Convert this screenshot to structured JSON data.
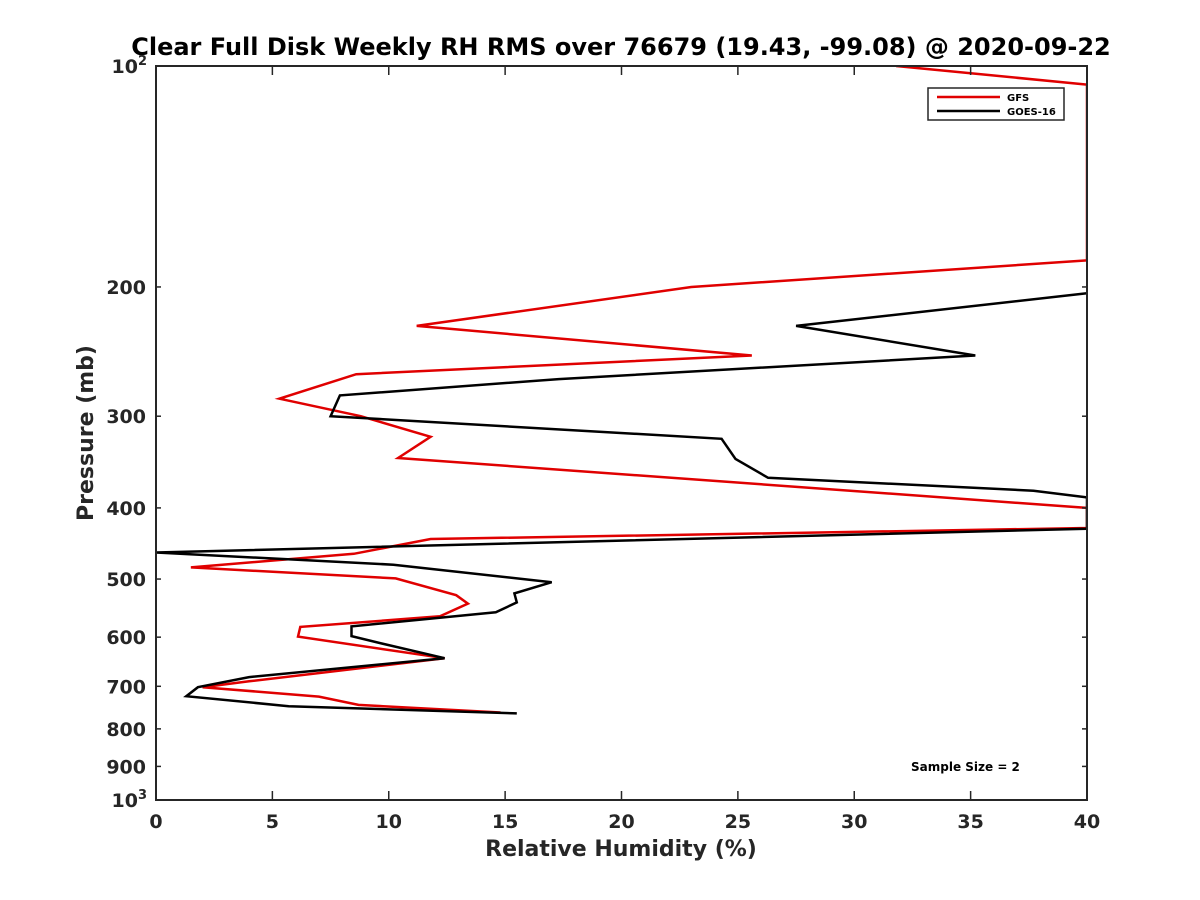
{
  "chart_data": {
    "type": "line",
    "title": "Clear Full Disk Weekly RH RMS over 76679 (19.43, -99.08) @ 2020-09-22",
    "xlabel": "Relative Humidity (%)",
    "ylabel": "Pressure (mb)",
    "xlim": [
      0,
      40
    ],
    "ylim": [
      100,
      1000
    ],
    "y_scale": "log",
    "y_reversed": true,
    "x_ticks": [
      {
        "value": 0,
        "label": "0"
      },
      {
        "value": 5,
        "label": "5"
      },
      {
        "value": 10,
        "label": "10"
      },
      {
        "value": 15,
        "label": "15"
      },
      {
        "value": 20,
        "label": "20"
      },
      {
        "value": 25,
        "label": "25"
      },
      {
        "value": 30,
        "label": "30"
      },
      {
        "value": 35,
        "label": "35"
      },
      {
        "value": 40,
        "label": "40"
      }
    ],
    "y_ticks": [
      {
        "value": 100,
        "label": "10",
        "exp": "2"
      },
      {
        "value": 200,
        "label": "200"
      },
      {
        "value": 300,
        "label": "300"
      },
      {
        "value": 400,
        "label": "400"
      },
      {
        "value": 500,
        "label": "500"
      },
      {
        "value": 600,
        "label": "600"
      },
      {
        "value": 700,
        "label": "700"
      },
      {
        "value": 800,
        "label": "800"
      },
      {
        "value": 900,
        "label": "900"
      },
      {
        "value": 1000,
        "label": "10",
        "exp": "3"
      }
    ],
    "grid": false,
    "legend_position": "top-right",
    "series": [
      {
        "name": "GFS",
        "color": "#e00000",
        "points": [
          [
            31.8,
            100
          ],
          [
            40,
            106
          ],
          [
            40,
            184
          ],
          [
            23.0,
            200
          ],
          [
            11.2,
            226
          ],
          [
            25.6,
            248
          ],
          [
            8.6,
            263
          ],
          [
            5.3,
            284
          ],
          [
            8.8,
            300
          ],
          [
            11.8,
            320
          ],
          [
            10.4,
            342
          ],
          [
            40,
            400
          ],
          [
            40,
            426
          ],
          [
            11.8,
            441
          ],
          [
            8.5,
            462
          ],
          [
            1.5,
            482
          ],
          [
            10.3,
            499
          ],
          [
            12.9,
            526
          ],
          [
            13.4,
            540
          ],
          [
            12.2,
            562
          ],
          [
            6.2,
            581
          ],
          [
            6.1,
            599
          ],
          [
            12.4,
            641
          ],
          [
            4.0,
            689
          ],
          [
            2.0,
            702
          ],
          [
            7.0,
            723
          ],
          [
            8.7,
            742
          ],
          [
            14.8,
            760
          ]
        ]
      },
      {
        "name": "GOES-16",
        "color": "#000000",
        "points": [
          [
            40,
            204
          ],
          [
            27.5,
            226
          ],
          [
            35.2,
            248
          ],
          [
            17.3,
            267
          ],
          [
            7.9,
            281
          ],
          [
            7.5,
            300
          ],
          [
            24.3,
            322
          ],
          [
            24.9,
            343
          ],
          [
            26.3,
            364
          ],
          [
            37.7,
            379
          ],
          [
            40,
            387
          ],
          [
            40,
            427
          ],
          [
            0.0,
            460
          ],
          [
            10.2,
            478
          ],
          [
            17.0,
            505
          ],
          [
            15.4,
            523
          ],
          [
            15.5,
            538
          ],
          [
            14.6,
            555
          ],
          [
            8.4,
            580
          ],
          [
            8.4,
            598
          ],
          [
            9.7,
            612
          ],
          [
            12.4,
            641
          ],
          [
            4.0,
            680
          ],
          [
            1.8,
            702
          ],
          [
            1.3,
            722
          ],
          [
            5.7,
            745
          ],
          [
            15.5,
            762
          ]
        ]
      }
    ],
    "annotations": [
      {
        "text": "Sample Size = 2"
      }
    ]
  }
}
